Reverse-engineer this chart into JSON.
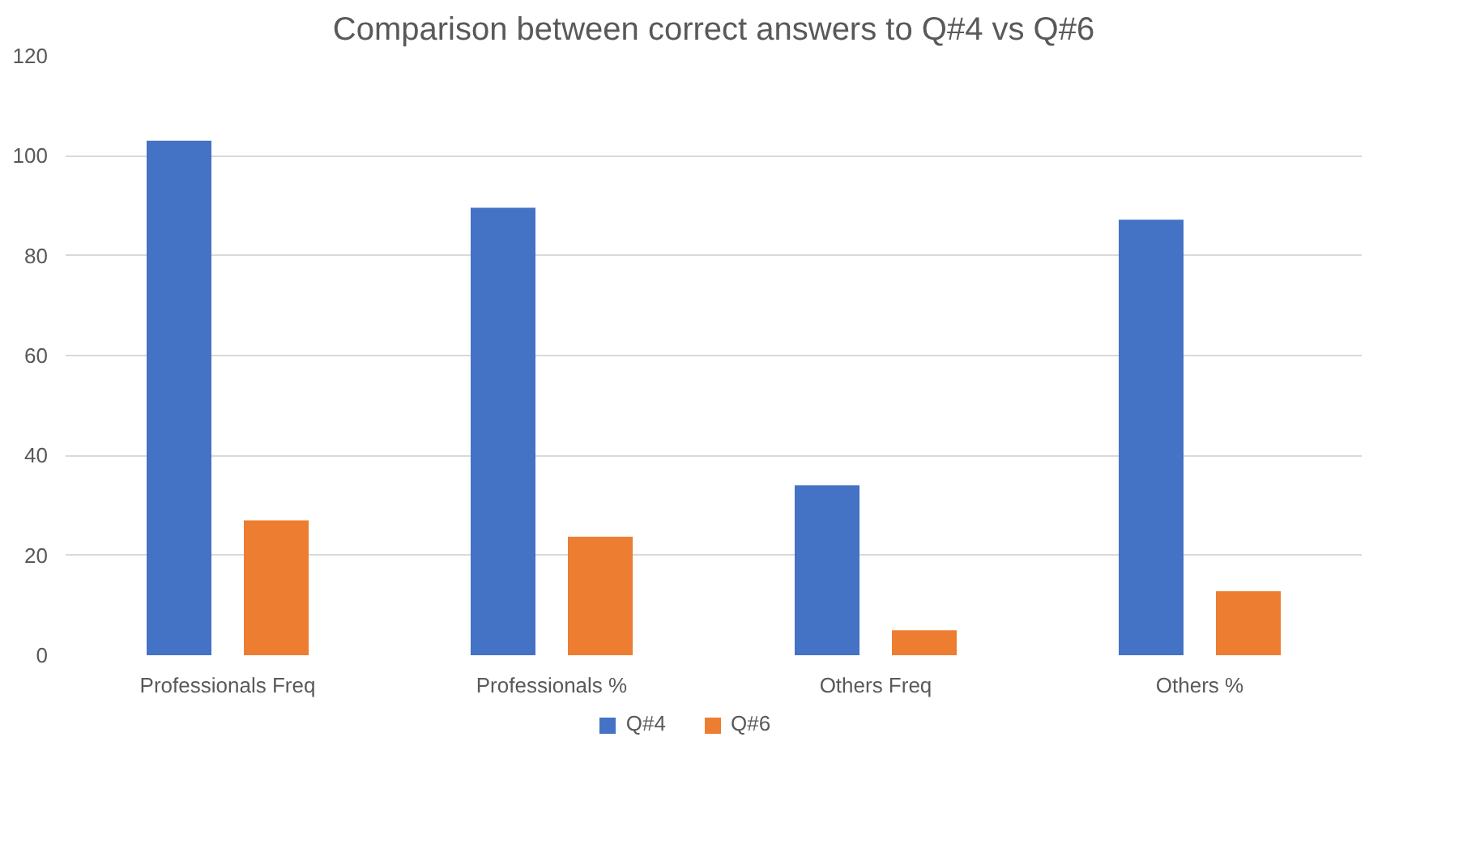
{
  "chart_data": {
    "type": "bar",
    "title": "Comparison between correct answers to Q#4 vs Q#6",
    "categories": [
      "Professionals Freq",
      "Professionals %",
      "Others Freq",
      "Others %"
    ],
    "series": [
      {
        "name": "Q#4",
        "color": "#4472c4",
        "values": [
          103,
          89.6,
          34,
          87.2
        ]
      },
      {
        "name": "Q#6",
        "color": "#ed7d31",
        "values": [
          27,
          23.7,
          5,
          12.8
        ]
      }
    ],
    "ylim": [
      0,
      120
    ],
    "yticks": [
      0,
      20,
      40,
      60,
      80,
      100,
      120
    ],
    "grid": "y",
    "legend": "bottom"
  }
}
